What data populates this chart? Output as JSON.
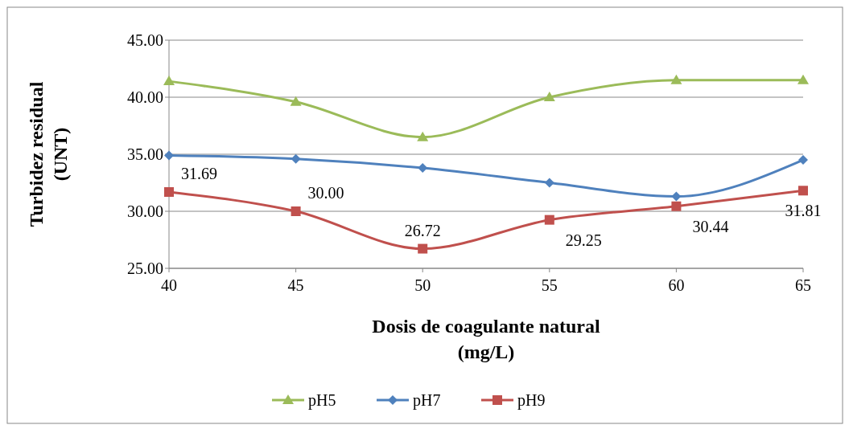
{
  "chart_data": {
    "type": "line",
    "xlabel": "Dosis de coagulante natural\n(mg/L)",
    "ylabel": "Turbidez residual\n(UNT)",
    "categories": [
      "40",
      "45",
      "50",
      "55",
      "60",
      "65"
    ],
    "ylim": [
      25,
      45
    ],
    "yticks": [
      {
        "value": 25,
        "label": "25.00"
      },
      {
        "value": 30,
        "label": "30.00"
      },
      {
        "value": 35,
        "label": "35.00"
      },
      {
        "value": 40,
        "label": "40.00"
      },
      {
        "value": 45,
        "label": "45.00"
      }
    ],
    "grid": "y",
    "legend": "bottom",
    "series": [
      {
        "name": "pH5",
        "color": "#9bbb59",
        "marker": "triangle",
        "values": [
          41.4,
          39.6,
          36.5,
          40.0,
          41.5,
          41.5
        ]
      },
      {
        "name": "pH7",
        "color": "#4f81bd",
        "marker": "diamond",
        "values": [
          34.9,
          34.6,
          33.8,
          32.5,
          31.3,
          34.5
        ]
      },
      {
        "name": "pH9",
        "color": "#c0504d",
        "marker": "square",
        "values": [
          31.69,
          30.0,
          26.72,
          29.25,
          30.44,
          31.81
        ],
        "value_labels": [
          "31.69",
          "30.00",
          "26.72",
          "29.25",
          "30.44",
          "31.81"
        ]
      }
    ]
  }
}
